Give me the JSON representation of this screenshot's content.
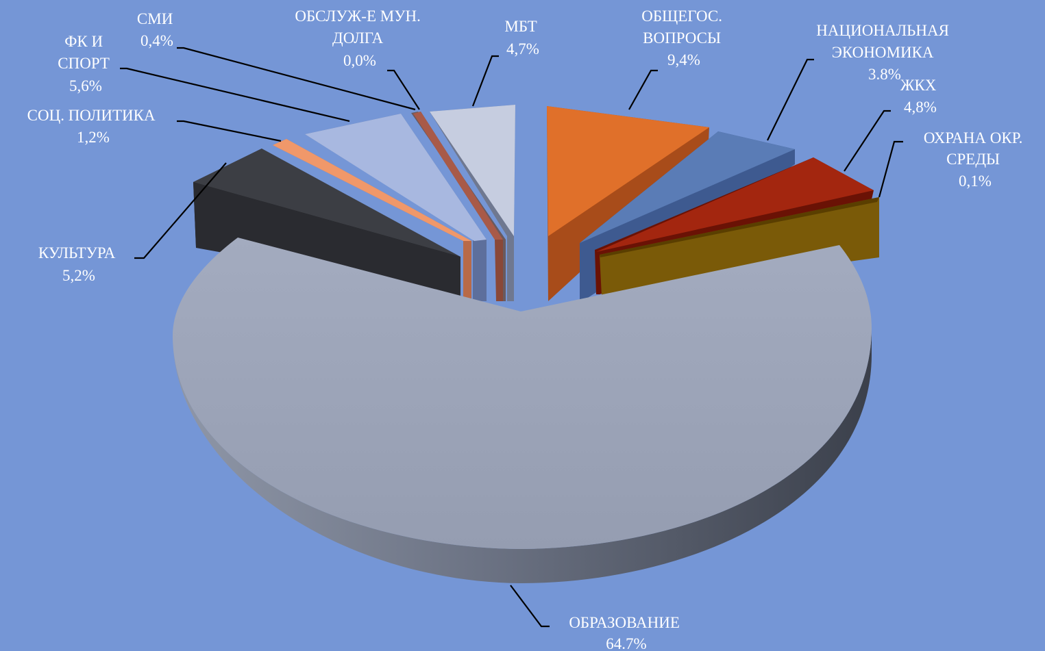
{
  "chart_data": {
    "type": "pie",
    "title": "",
    "exploded": true,
    "three_d": true,
    "slices": [
      {
        "label_lines": [
          "ОБЩЕГОС.",
          "ВОПРОСЫ"
        ],
        "value": 9.4,
        "value_text": "9,4%",
        "color": "#e0702a"
      },
      {
        "label_lines": [
          "НАЦИОНАЛЬНАЯ",
          "ЭКОНОМИКА"
        ],
        "value": 3.8,
        "value_text": "3.8%",
        "color": "#5a7cb6"
      },
      {
        "label_lines": [
          "ЖКХ"
        ],
        "value": 4.8,
        "value_text": "4,8%",
        "color": "#a3260f"
      },
      {
        "label_lines": [
          "ОХРАНА ОКР.",
          "СРЕДЫ"
        ],
        "value": 0.1,
        "value_text": "0,1%",
        "color": "#7a5a08"
      },
      {
        "label_lines": [
          "ОБРАЗОВАНИЕ"
        ],
        "value": 64.7,
        "value_text": "64.7%",
        "color": "#9aa3b8"
      },
      {
        "label_lines": [
          "КУЛЬТУРА"
        ],
        "value": 5.2,
        "value_text": "5,2%",
        "color": "#3c3e44"
      },
      {
        "label_lines": [
          "СОЦ. ПОЛИТИКА"
        ],
        "value": 1.2,
        "value_text": "1,2%",
        "color": "#f0986a"
      },
      {
        "label_lines": [
          "ФК И",
          "СПОРТ"
        ],
        "value": 5.6,
        "value_text": "5,6%",
        "color": "#a8b8e0"
      },
      {
        "label_lines": [
          "СМИ"
        ],
        "value": 0.4,
        "value_text": "0,4%",
        "color": "#8a9ac0"
      },
      {
        "label_lines": [
          "ОБСЛУЖ-Е МУН.",
          "ДОЛГА"
        ],
        "value": 0.0,
        "value_text": "0,0%",
        "color": "#a85a48"
      },
      {
        "label_lines": [
          "МБТ"
        ],
        "value": 4.7,
        "value_text": "4,7%",
        "color": "#c6cde0"
      }
    ]
  }
}
